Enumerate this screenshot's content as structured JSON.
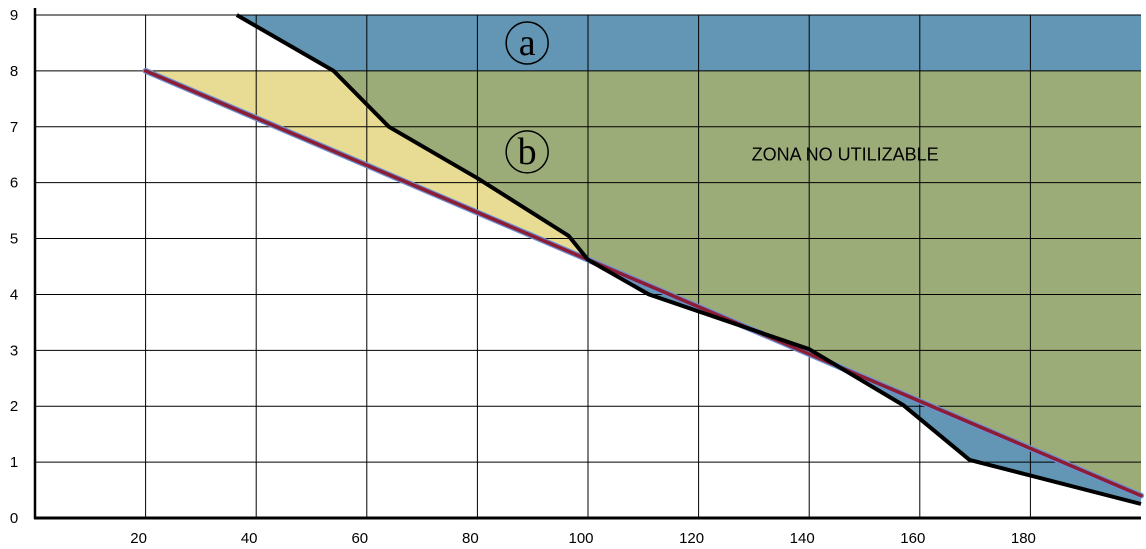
{
  "chart_data": {
    "type": "area",
    "title": "",
    "xlabel": "",
    "ylabel": "",
    "xlim": [
      0,
      200
    ],
    "ylim": [
      0,
      9
    ],
    "x_ticks": [
      20,
      40,
      60,
      80,
      100,
      120,
      140,
      160,
      180
    ],
    "y_ticks": [
      0,
      1,
      2,
      3,
      4,
      5,
      6,
      7,
      8,
      9
    ],
    "grid": true,
    "series": [
      {
        "role": "black-boundary",
        "color": "#000000",
        "points": [
          [
            36.5,
            9
          ],
          [
            54,
            8
          ],
          [
            64,
            7
          ],
          [
            80,
            6.08
          ],
          [
            96.5,
            5.05
          ],
          [
            100,
            4.62
          ],
          [
            111,
            4.0
          ],
          [
            140,
            3.02
          ],
          [
            157,
            2.02
          ],
          [
            169,
            1.04
          ],
          [
            200,
            0.25
          ]
        ]
      },
      {
        "role": "red-line",
        "color": "#8c1d34",
        "points": [
          [
            20,
            8.0
          ],
          [
            200,
            0.4
          ]
        ]
      }
    ],
    "regions": {
      "a_color": "#6296b4",
      "b_color": "#9cac79",
      "yellow_color": "#e8dc94",
      "blue_color": "#6296b4"
    },
    "annotations": {
      "label_a": "a",
      "label_b": "b",
      "zone_text": "ZONA NO UTILIZABLE"
    }
  }
}
